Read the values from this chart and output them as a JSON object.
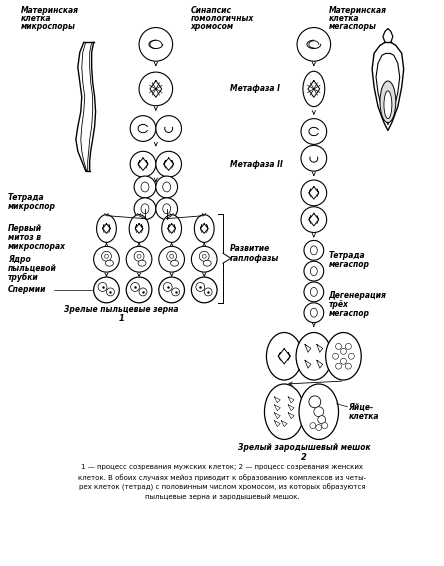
{
  "bg_color": "#ffffff",
  "text_color": "#000000",
  "caption_line1": "1 — процесс созревания мужских клеток; 2 — процесс созревания женских",
  "caption_line2": "клеток. В обоих случаях мейоз приводит к образованию комплексов из четы-",
  "caption_line3": "рех клеток (тетрад) с половинным числом хромосом, из которых образуются",
  "caption_line4": "пыльцевые зерна и зародышевый мешок."
}
